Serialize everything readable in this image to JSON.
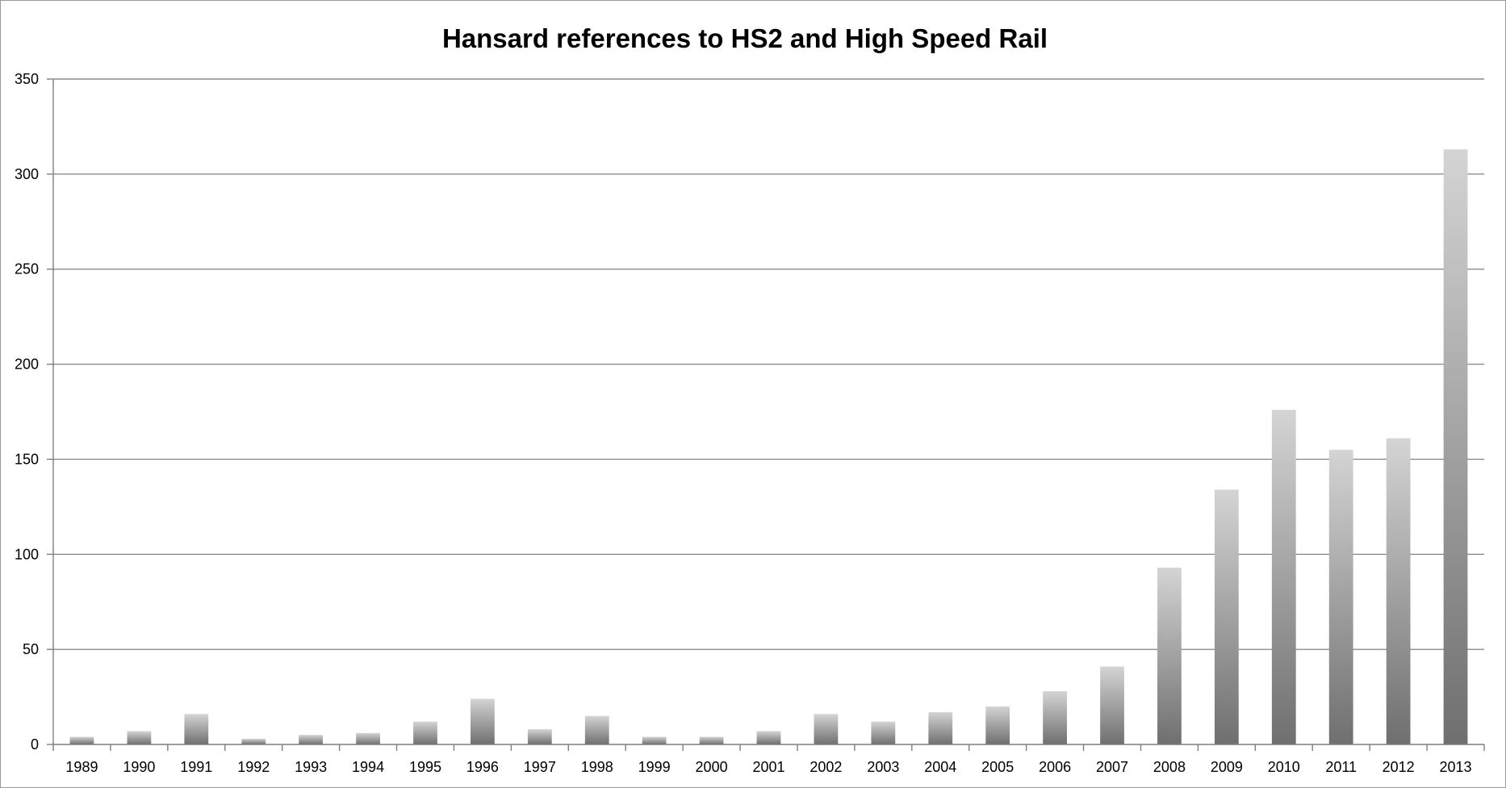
{
  "chart_data": {
    "type": "bar",
    "title": "Hansard references to HS2 and High Speed Rail",
    "xlabel": "",
    "ylabel": "",
    "categories": [
      "1989",
      "1990",
      "1991",
      "1992",
      "1993",
      "1994",
      "1995",
      "1996",
      "1997",
      "1998",
      "1999",
      "2000",
      "2001",
      "2002",
      "2003",
      "2004",
      "2005",
      "2006",
      "2007",
      "2008",
      "2009",
      "2010",
      "2011",
      "2012",
      "2013"
    ],
    "values": [
      4,
      7,
      16,
      3,
      5,
      6,
      12,
      24,
      8,
      15,
      4,
      4,
      7,
      16,
      12,
      17,
      20,
      28,
      41,
      93,
      134,
      176,
      155,
      161,
      313
    ],
    "ylim": [
      0,
      350
    ],
    "yticks": [
      "0",
      "50",
      "100",
      "150",
      "200",
      "250",
      "300",
      "350"
    ],
    "grid": true,
    "legend": "none",
    "colors": {
      "bar_top": "#d4d4d4",
      "bar_bottom": "#6f6f6f",
      "grid": "#8c8c8c",
      "axis": "#7f7f7f"
    }
  }
}
